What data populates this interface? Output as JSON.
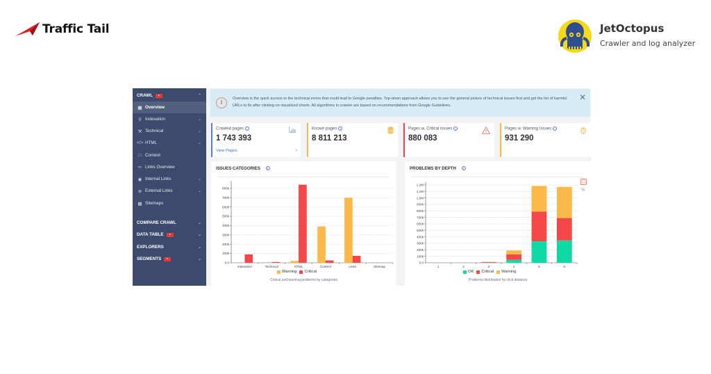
{
  "brands": {
    "left_logo": "Traffic Tail",
    "right_logo_title": "JetOctopus",
    "right_logo_subtitle": "Crawler and log analyzer"
  },
  "sidebar": {
    "sections": [
      {
        "label": "CRAWL",
        "video_badge": true,
        "expanded": true
      },
      {
        "label": "COMPARE CRAWL",
        "video_badge": false,
        "expanded": false
      },
      {
        "label": "DATA TABLE",
        "video_badge": true,
        "expanded": false
      },
      {
        "label": "EXPLORERS",
        "video_badge": false,
        "expanded": false
      },
      {
        "label": "SEGMENTS",
        "video_badge": true,
        "expanded": false
      }
    ],
    "items": [
      {
        "label": "Overview",
        "icon": "grid-icon",
        "active": true,
        "has_children": false
      },
      {
        "label": "Indexation",
        "icon": "bulb-icon",
        "active": false,
        "has_children": true
      },
      {
        "label": "Technical",
        "icon": "wrench-icon",
        "active": false,
        "has_children": true
      },
      {
        "label": "HTML",
        "icon": "code-icon",
        "active": false,
        "has_children": true
      },
      {
        "label": "Content",
        "icon": "document-icon",
        "active": false,
        "has_children": false
      },
      {
        "label": "Links Overview",
        "icon": "link-icon",
        "active": false,
        "has_children": false
      },
      {
        "label": "Internal Links",
        "icon": "target-icon",
        "active": false,
        "has_children": true
      },
      {
        "label": "External Links",
        "icon": "external-icon",
        "active": false,
        "has_children": true
      },
      {
        "label": "Sitemaps",
        "icon": "sitemap-icon",
        "active": false,
        "has_children": false
      }
    ]
  },
  "banner": {
    "text": "Overview is the quick access to the technical errors that could lead to Google penalties. Top-down approach allows you to see the general picture of technical issues first and get the list of harmful URLs to fix after clicking on visualized charts. All algorithms in crawler are based on recommendations from Google Guidelines."
  },
  "cards": [
    {
      "label": "Crawled pages",
      "value": "1 743 393",
      "link": "View Pages",
      "accent": "#5b7bd5",
      "icon": "bar-chart-icon"
    },
    {
      "label": "Known pages",
      "value": "8 811 213",
      "accent": "#f6b94d",
      "icon": "database-icon"
    },
    {
      "label": "Pages w. Critical Issues",
      "value": "880 083",
      "accent": "#ef4444",
      "icon": "warning-icon"
    },
    {
      "label": "Pages w. Warning Issues",
      "value": "931 290",
      "accent": "#f6b94d",
      "icon": "bug-icon"
    }
  ],
  "chart_data": [
    {
      "type": "bar",
      "title": "ISSUES CATEGORIES",
      "caption": "Critical and warning problems by categories",
      "categories": [
        "Indexation",
        "Technical",
        "HTML",
        "Content",
        "Links",
        "Sitemap"
      ],
      "series": [
        {
          "name": "Warning",
          "color": "#fbb94a",
          "values": [
            0,
            0,
            20000,
            390000,
            700000,
            0
          ]
        },
        {
          "name": "Critical",
          "color": "#f44848",
          "values": [
            90000,
            8000,
            840000,
            25000,
            75000,
            0
          ]
        }
      ],
      "yticks": [
        "0.0",
        "100k",
        "200k",
        "300k",
        "400k",
        "500k",
        "600k",
        "700k",
        "800k"
      ],
      "ylim": [
        0,
        850000
      ],
      "grid": true,
      "legend": "bottom"
    },
    {
      "type": "bar",
      "stacked": true,
      "title": "PROBLEMS BY DEPTH",
      "caption": "Problems distribution by click distance",
      "categories": [
        "1",
        "2",
        "3",
        "4",
        "5",
        "6"
      ],
      "series": [
        {
          "name": "OK",
          "color": "#10d9a6",
          "values": [
            0,
            0,
            2000,
            45000,
            330000,
            345000
          ]
        },
        {
          "name": "Critical",
          "color": "#f44848",
          "values": [
            0,
            0,
            8000,
            85000,
            460000,
            345000
          ]
        },
        {
          "name": "Warning",
          "color": "#fbb94a",
          "values": [
            0,
            0,
            3000,
            60000,
            395000,
            480000
          ]
        }
      ],
      "yticks": [
        "0.0",
        "100k",
        "200k",
        "300k",
        "400k",
        "500k",
        "600k",
        "700k",
        "800k",
        "900k",
        "1,0M",
        "1,1M",
        "1,2M"
      ],
      "ylim": [
        0,
        1200000
      ],
      "grid": true,
      "legend": "bottom",
      "toggle_percent": "%"
    }
  ]
}
